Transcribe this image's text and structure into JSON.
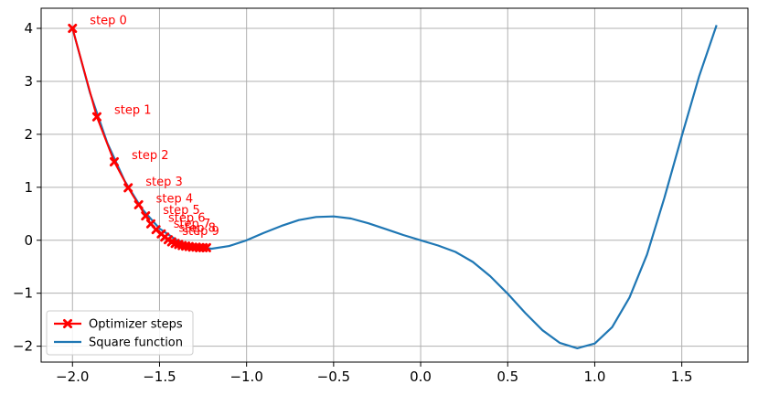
{
  "chart_data": {
    "type": "line",
    "title": "",
    "xlabel": "",
    "ylabel": "",
    "xlim": [
      -2.18,
      1.88
    ],
    "ylim": [
      -2.3,
      4.38
    ],
    "grid": true,
    "legend_position": "lower-left",
    "x_ticks": [
      {
        "value": -2.0,
        "label": "−2.0"
      },
      {
        "value": -1.5,
        "label": "−1.5"
      },
      {
        "value": -1.0,
        "label": "−1.0"
      },
      {
        "value": -0.5,
        "label": "−0.5"
      },
      {
        "value": 0.0,
        "label": "0.0"
      },
      {
        "value": 0.5,
        "label": "0.5"
      },
      {
        "value": 1.0,
        "label": "1.0"
      },
      {
        "value": 1.5,
        "label": "1.5"
      }
    ],
    "y_ticks": [
      {
        "value": -2,
        "label": "−2"
      },
      {
        "value": -1,
        "label": "−1"
      },
      {
        "value": 0,
        "label": "0"
      },
      {
        "value": 1,
        "label": "1"
      },
      {
        "value": 2,
        "label": "2"
      },
      {
        "value": 3,
        "label": "3"
      },
      {
        "value": 4,
        "label": "4"
      }
    ],
    "series": [
      {
        "name": "Optimizer steps",
        "color": "#ff0000",
        "marker": "x",
        "x": [
          -2.0,
          -1.86,
          -1.76,
          -1.68,
          -1.62,
          -1.58,
          -1.55,
          -1.52,
          -1.49,
          -1.47,
          -1.45,
          -1.43,
          -1.41,
          -1.39,
          -1.37,
          -1.35,
          -1.33,
          -1.31,
          -1.29,
          -1.27,
          -1.25,
          -1.23
        ],
        "y": [
          4.0,
          2.33,
          1.48,
          0.99,
          0.67,
          0.46,
          0.31,
          0.2,
          0.12,
          0.06,
          0.01,
          -0.03,
          -0.06,
          -0.08,
          -0.1,
          -0.11,
          -0.12,
          -0.13,
          -0.13,
          -0.14,
          -0.14,
          -0.14
        ]
      },
      {
        "name": "Square function",
        "color": "#1f77b4",
        "x": [
          -2.0,
          -1.9,
          -1.8,
          -1.7,
          -1.6,
          -1.5,
          -1.4,
          -1.3,
          -1.2,
          -1.1,
          -1.0,
          -0.9,
          -0.8,
          -0.7,
          -0.6,
          -0.5,
          -0.4,
          -0.3,
          -0.2,
          -0.1,
          0.0,
          0.1,
          0.2,
          0.3,
          0.4,
          0.5,
          0.6,
          0.7,
          0.8,
          0.9,
          1.0,
          1.1,
          1.2,
          1.3,
          1.4,
          1.5,
          1.6,
          1.7
        ],
        "y": [
          4.0,
          2.79,
          1.84,
          1.12,
          0.59,
          0.22,
          0.0,
          -0.13,
          -0.16,
          -0.11,
          0.0,
          0.14,
          0.27,
          0.38,
          0.44,
          0.45,
          0.41,
          0.32,
          0.21,
          0.1,
          0.0,
          -0.1,
          -0.22,
          -0.41,
          -0.68,
          -1.01,
          -1.37,
          -1.7,
          -1.94,
          -2.04,
          -1.95,
          -1.64,
          -1.08,
          -0.27,
          0.8,
          1.97,
          3.1,
          4.06
        ]
      }
    ],
    "annotations": [
      {
        "text": "step 0",
        "x": -1.9,
        "y": 4.08
      },
      {
        "text": "step 1",
        "x": -1.76,
        "y": 2.39
      },
      {
        "text": "step 2",
        "x": -1.66,
        "y": 1.53
      },
      {
        "text": "step 3",
        "x": -1.58,
        "y": 1.03
      },
      {
        "text": "step 4",
        "x": -1.52,
        "y": 0.71
      },
      {
        "text": "step 5",
        "x": -1.48,
        "y": 0.5
      },
      {
        "text": "step 6",
        "x": -1.45,
        "y": 0.35
      },
      {
        "text": "step 7",
        "x": -1.42,
        "y": 0.24
      },
      {
        "text": "step 8",
        "x": -1.39,
        "y": 0.16
      },
      {
        "text": "step 9",
        "x": -1.37,
        "y": 0.1
      }
    ],
    "legend": [
      {
        "label": "Optimizer steps",
        "color": "#ff0000",
        "marker": "x"
      },
      {
        "label": "Square function",
        "color": "#1f77b4"
      }
    ]
  }
}
